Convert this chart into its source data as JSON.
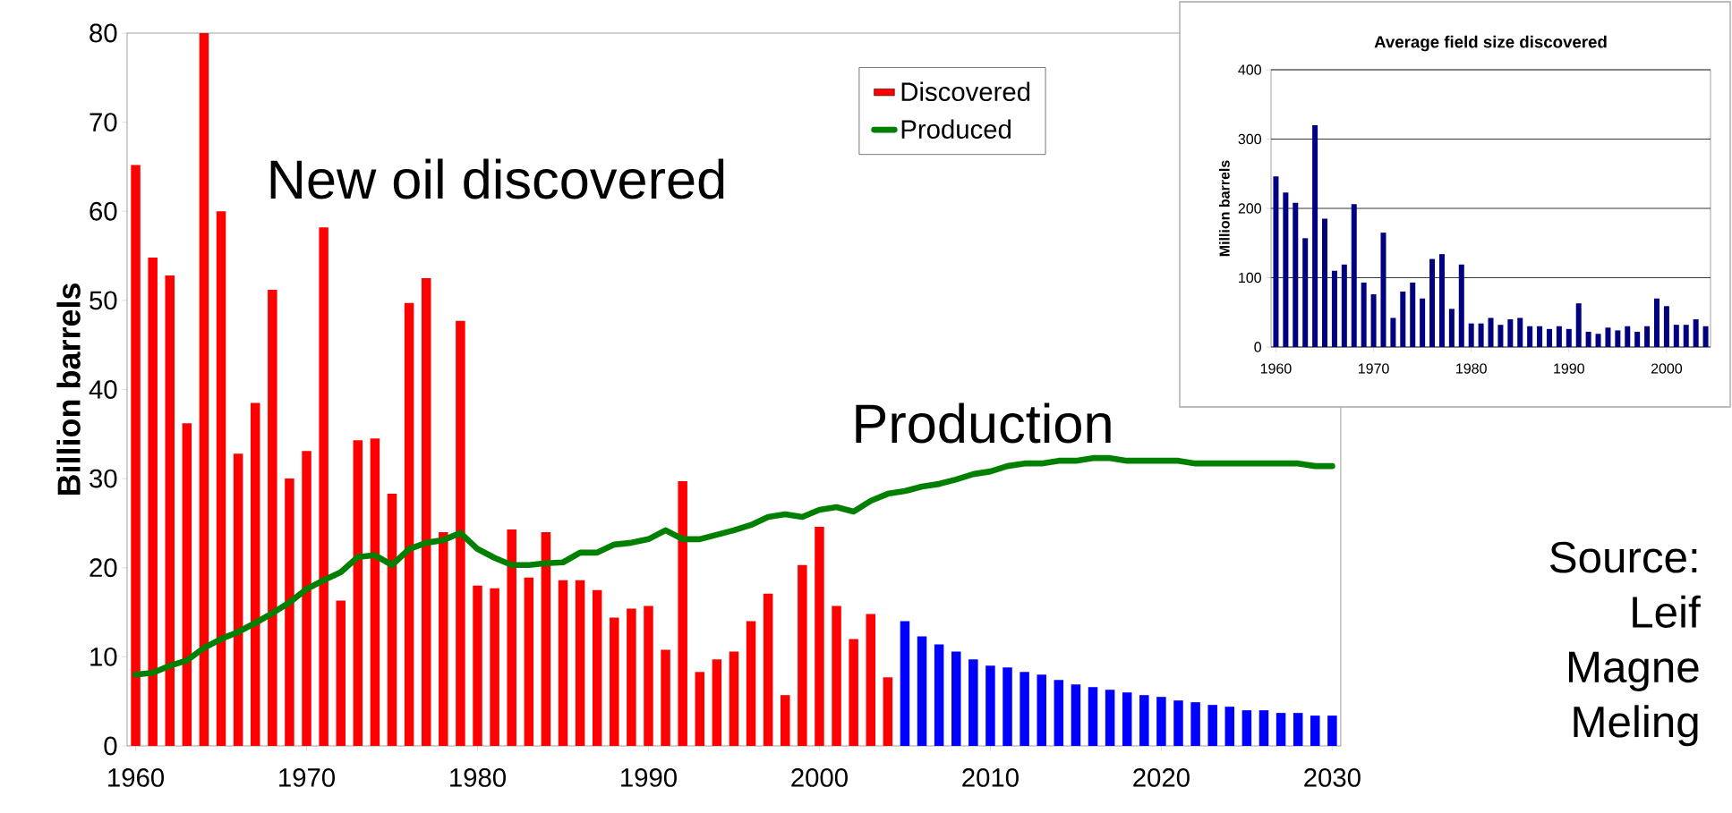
{
  "chart_data": [
    {
      "type": "bar",
      "ylabel": "Billion barrels",
      "x": [
        1960,
        1961,
        1962,
        1963,
        1964,
        1965,
        1966,
        1967,
        1968,
        1969,
        1970,
        1971,
        1972,
        1973,
        1974,
        1975,
        1976,
        1977,
        1978,
        1979,
        1980,
        1981,
        1982,
        1983,
        1984,
        1985,
        1986,
        1987,
        1988,
        1989,
        1990,
        1991,
        1992,
        1993,
        1994,
        1995,
        1996,
        1997,
        1998,
        1999,
        2000,
        2001,
        2002,
        2003,
        2004,
        2005,
        2006,
        2007,
        2008,
        2009,
        2010,
        2011,
        2012,
        2013,
        2014,
        2015,
        2016,
        2017,
        2018,
        2019,
        2020,
        2021,
        2022,
        2023,
        2024,
        2025,
        2026,
        2027,
        2028,
        2029,
        2030
      ],
      "series": [
        {
          "name": "Discovered",
          "color": "#ff0000",
          "values": [
            65.2,
            54.8,
            52.8,
            36.2,
            80,
            60,
            32.8,
            38.5,
            51.2,
            30,
            33.1,
            58.2,
            16.3,
            34.3,
            34.5,
            28.3,
            49.7,
            52.5,
            24,
            47.7,
            18,
            17.7,
            24.3,
            18.9,
            24,
            18.6,
            18.6,
            17.5,
            14.4,
            15.4,
            15.7,
            10.8,
            29.7,
            8.3,
            9.7,
            10.6,
            14,
            17.1,
            5.7,
            20.3,
            24.6,
            15.7,
            12,
            14.8,
            7.7,
            null,
            null,
            null,
            null,
            null,
            null,
            null,
            null,
            null,
            null,
            null,
            null,
            null,
            null,
            null,
            null,
            null,
            null,
            null,
            null,
            null,
            null,
            null,
            null,
            null,
            null
          ]
        },
        {
          "color": "#0000ff",
          "values": [
            null,
            null,
            null,
            null,
            null,
            null,
            null,
            null,
            null,
            null,
            null,
            null,
            null,
            null,
            null,
            null,
            null,
            null,
            null,
            null,
            null,
            null,
            null,
            null,
            null,
            null,
            null,
            null,
            null,
            null,
            null,
            null,
            null,
            null,
            null,
            null,
            null,
            null,
            null,
            null,
            null,
            null,
            null,
            null,
            null,
            14,
            12.3,
            11.4,
            10.6,
            9.7,
            9.0,
            8.8,
            8.3,
            8.0,
            7.4,
            6.9,
            6.6,
            6.3,
            6.0,
            5.7,
            5.5,
            5.1,
            4.9,
            4.6,
            4.4,
            4.0,
            4.0,
            3.7,
            3.7,
            3.4,
            3.4
          ]
        },
        {
          "name": "Produced",
          "type": "line",
          "color": "#008000",
          "values": [
            8.0,
            8.2,
            9.0,
            9.6,
            11.0,
            12.0,
            12.8,
            13.8,
            14.9,
            16.1,
            17.6,
            18.6,
            19.5,
            21.2,
            21.4,
            20.3,
            22.1,
            22.8,
            23.1,
            23.9,
            22.1,
            21.1,
            20.3,
            20.3,
            20.5,
            20.6,
            21.7,
            21.7,
            22.6,
            22.8,
            23.2,
            24.2,
            23.2,
            23.2,
            23.7,
            24.2,
            24.8,
            25.7,
            26.0,
            25.7,
            26.5,
            26.8,
            26.3,
            27.5,
            28.3,
            28.6,
            29.1,
            29.4,
            29.9,
            30.5,
            30.8,
            31.4,
            31.7,
            31.7,
            32.0,
            32.0,
            32.3,
            32.3,
            32.0,
            32.0,
            32.0,
            32.0,
            31.7,
            31.7,
            31.7,
            31.7,
            31.7,
            31.7,
            31.7,
            31.4,
            31.4
          ]
        }
      ],
      "xlim": [
        1959.5,
        2030.5
      ],
      "xticks": [
        1960,
        1970,
        1980,
        1990,
        2000,
        2010,
        2020,
        2030
      ],
      "ylim": [
        0,
        80
      ],
      "yticks": [
        0,
        10,
        20,
        30,
        40,
        50,
        60,
        70,
        80
      ],
      "legend": "top right",
      "annotations": [
        "New oil discovered",
        "Production",
        "Source: Leif Magne Meling"
      ]
    },
    {
      "type": "bar",
      "title": "Average field size discovered",
      "ylabel": "Million barrels",
      "x": [
        1960,
        1961,
        1962,
        1963,
        1964,
        1965,
        1966,
        1967,
        1968,
        1969,
        1970,
        1971,
        1972,
        1973,
        1974,
        1975,
        1976,
        1977,
        1978,
        1979,
        1980,
        1981,
        1982,
        1983,
        1984,
        1985,
        1986,
        1987,
        1988,
        1989,
        1990,
        1991,
        1992,
        1993,
        1994,
        1995,
        1996,
        1997,
        1998,
        1999,
        2000,
        2001,
        2002,
        2003,
        2004
      ],
      "values": [
        246,
        223,
        208,
        157,
        320,
        185,
        110,
        119,
        206,
        93,
        76,
        165,
        42,
        80,
        93,
        70,
        127,
        134,
        55,
        119,
        34,
        34,
        42,
        32,
        40,
        42,
        30,
        30,
        26,
        30,
        26,
        63,
        22,
        19,
        28,
        24,
        30,
        22,
        30,
        70,
        59,
        32,
        32,
        40,
        30
      ],
      "color": "#000080",
      "xlim": [
        1959.5,
        2004.5
      ],
      "xticks": [
        1960,
        1970,
        1980,
        1990,
        2000
      ],
      "ylim": [
        0,
        400
      ],
      "yticks": [
        0,
        100,
        200,
        300,
        400
      ],
      "grid": "y"
    }
  ]
}
